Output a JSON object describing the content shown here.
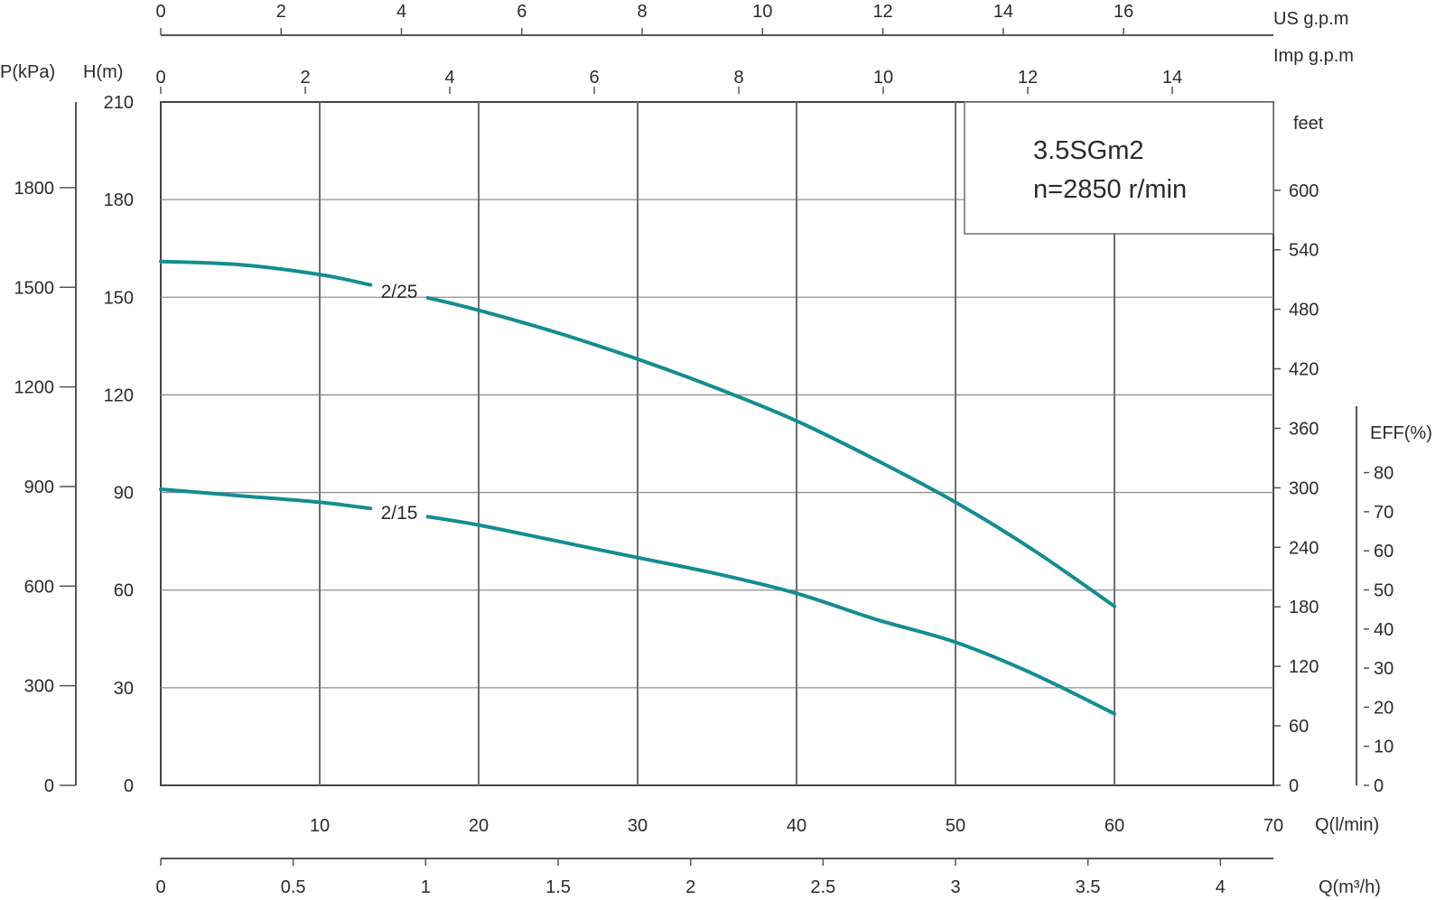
{
  "chart_data": {
    "type": "line",
    "title": "3.5SGm2",
    "subtitle": "n=2850 r/min",
    "curve_color": "#138d92",
    "x_axes": {
      "flow_lpm": {
        "label": "Q(l/min)",
        "range": [
          0,
          70
        ],
        "ticks": [
          "10",
          "20",
          "30",
          "40",
          "50",
          "60",
          "70"
        ]
      },
      "flow_m3h": {
        "label": "Q(m³/h)",
        "range": [
          0,
          4.2
        ],
        "ticks": [
          "0",
          "0.5",
          "1",
          "1.5",
          "2",
          "2.5",
          "3",
          "3.5",
          "4"
        ]
      },
      "us_gpm": {
        "label": "US  g.p.m",
        "range": [
          0,
          18.49
        ],
        "ticks": [
          "0",
          "2",
          "4",
          "6",
          "8",
          "10",
          "12",
          "14",
          "16"
        ]
      },
      "imp_gpm": {
        "label": "Imp  g.p.m",
        "range": [
          0,
          15.4
        ],
        "ticks": [
          "0",
          "2",
          "4",
          "6",
          "8",
          "10",
          "12",
          "14"
        ]
      }
    },
    "y_axes": {
      "head_m": {
        "label": "H(m)",
        "range": [
          0,
          210
        ],
        "ticks": [
          "0",
          "30",
          "60",
          "90",
          "120",
          "150",
          "180",
          "210"
        ]
      },
      "pressure_kpa": {
        "label": "P(kPa)",
        "range": [
          0,
          2058
        ],
        "ticks": [
          "0",
          "300",
          "600",
          "900",
          "1200",
          "1500",
          "1800"
        ]
      },
      "head_ft": {
        "label": "feet",
        "range": [
          0,
          689
        ],
        "ticks": [
          "0",
          "60",
          "120",
          "180",
          "240",
          "300",
          "360",
          "420",
          "480",
          "540",
          "600"
        ]
      },
      "efficiency_pct": {
        "label": "EFF(%)",
        "ticks": [
          "0",
          "10",
          "20",
          "30",
          "40",
          "50",
          "60",
          "70",
          "80"
        ]
      }
    },
    "grid": true,
    "series": [
      {
        "name": "2/25",
        "x": [
          0,
          5,
          10,
          15,
          20,
          25,
          30,
          35,
          40,
          45,
          50,
          55,
          60
        ],
        "y": [
          161,
          160,
          157,
          152,
          146,
          139,
          131,
          122,
          112,
          100,
          87,
          72,
          55
        ]
      },
      {
        "name": "2/15",
        "x": [
          0,
          5,
          10,
          15,
          20,
          25,
          30,
          35,
          40,
          45,
          50,
          55,
          60
        ],
        "y": [
          91,
          89,
          87,
          84,
          80,
          75,
          70,
          65,
          59,
          51,
          44,
          34,
          22
        ]
      }
    ]
  }
}
